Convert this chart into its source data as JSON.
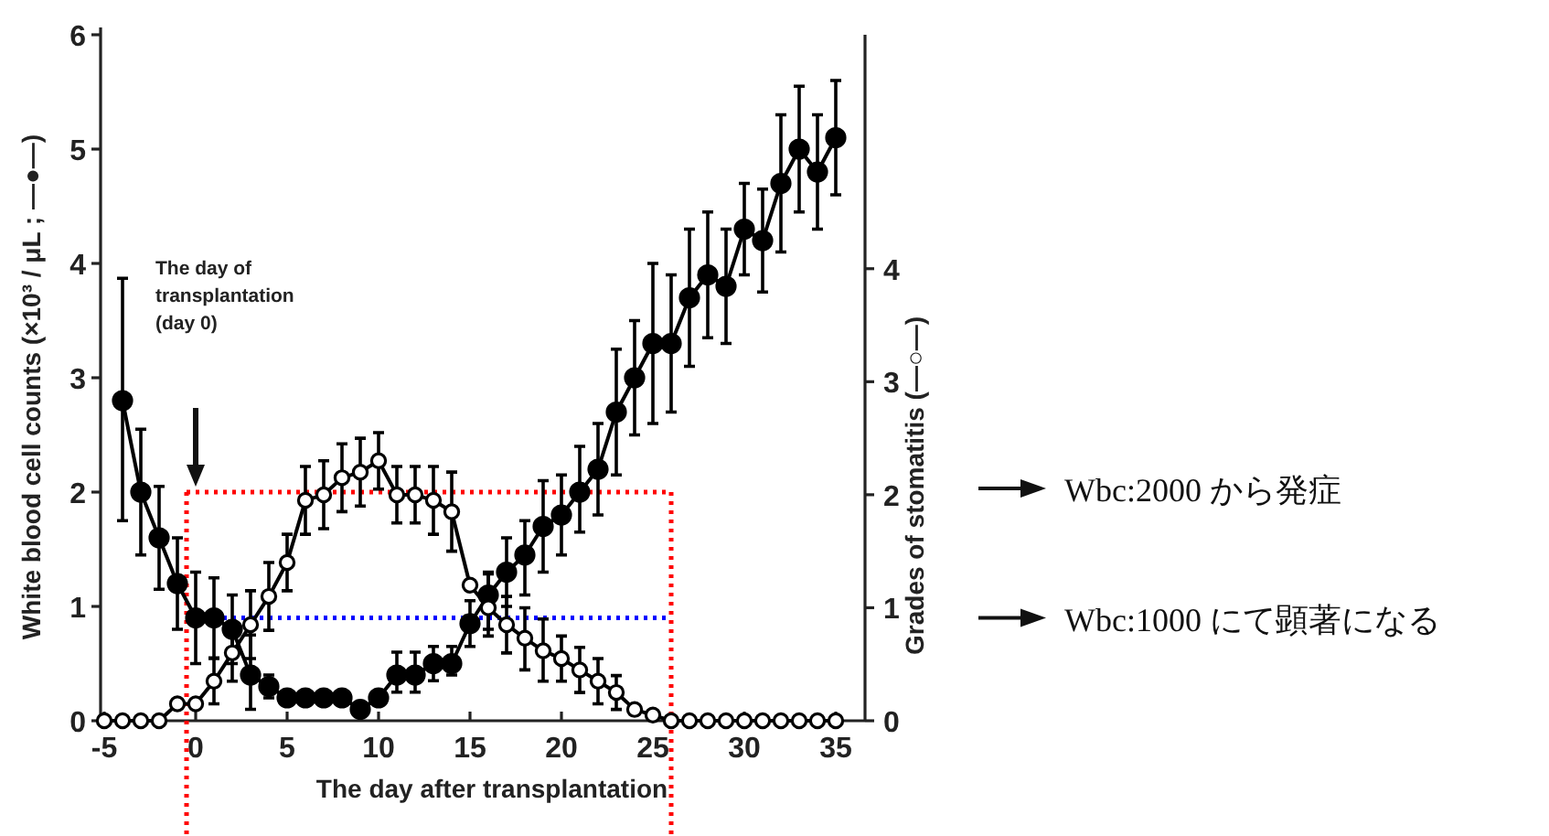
{
  "chart_data": {
    "type": "line",
    "xlabel": "The day after transplantation",
    "ylabel": "White blood cell counts (×10³ / μL ; —●—)",
    "y2label": "Grades of stomatitis (—○—)",
    "xlim": [
      -5.2,
      36.6
    ],
    "xticks": [
      -5,
      0,
      5,
      10,
      15,
      20,
      25,
      30,
      35
    ],
    "ylim": [
      0,
      6
    ],
    "yticks": [
      0,
      1,
      2,
      3,
      4,
      5,
      6
    ],
    "y2lim": [
      0,
      6.07
    ],
    "y2ticks": [
      0,
      1,
      2,
      3,
      4
    ],
    "grid": false,
    "marker": "circle",
    "line_style": "solid",
    "series": [
      {
        "color": "#000000",
        "x": [
          -4,
          -3,
          -2,
          -1,
          0,
          1,
          2,
          3,
          4,
          5,
          6,
          7,
          8,
          9,
          10,
          11,
          12,
          13,
          14,
          15,
          16,
          17,
          18,
          19,
          20,
          21,
          22,
          23,
          24,
          25,
          26,
          27,
          28,
          29,
          30,
          31,
          32,
          33,
          34,
          35
        ],
        "values": [
          2.8,
          2.0,
          1.6,
          1.2,
          0.9,
          0.9,
          0.8,
          0.4,
          0.3,
          0.2,
          0.2,
          0.2,
          0.2,
          0.1,
          0.2,
          0.4,
          0.4,
          0.5,
          0.5,
          0.85,
          1.1,
          1.3,
          1.45,
          1.7,
          1.8,
          2.0,
          2.2,
          2.7,
          3.0,
          3.3,
          3.3,
          3.7,
          3.9,
          3.8,
          4.3,
          4.2,
          4.7,
          5.0,
          4.8,
          5.1
        ],
        "errors": [
          [
            1.75,
            3.87
          ],
          [
            1.45,
            2.55
          ],
          [
            1.15,
            2.05
          ],
          [
            0.8,
            1.6
          ],
          [
            0.5,
            1.3
          ],
          [
            0.55,
            1.25
          ],
          [
            0.5,
            1.1
          ],
          [
            0.1,
            0.75
          ],
          [
            0.2,
            0.4
          ],
          null,
          null,
          null,
          null,
          null,
          null,
          [
            0.25,
            0.6
          ],
          [
            0.25,
            0.6
          ],
          [
            0.35,
            0.65
          ],
          [
            0.4,
            0.65
          ],
          [
            0.65,
            1.05
          ],
          [
            0.8,
            1.3
          ],
          [
            1.0,
            1.6
          ],
          [
            1.1,
            1.75
          ],
          [
            1.3,
            2.1
          ],
          [
            1.45,
            2.15
          ],
          [
            1.65,
            2.4
          ],
          [
            1.8,
            2.6
          ],
          [
            2.15,
            3.25
          ],
          [
            2.5,
            3.5
          ],
          [
            2.6,
            4.0
          ],
          [
            2.7,
            3.9
          ],
          [
            3.1,
            4.3
          ],
          [
            3.35,
            4.45
          ],
          [
            3.3,
            4.3
          ],
          [
            3.9,
            4.7
          ],
          [
            3.75,
            4.65
          ],
          [
            4.1,
            5.3
          ],
          [
            4.45,
            5.55
          ],
          [
            4.3,
            5.3
          ],
          [
            4.6,
            5.6
          ]
        ]
      },
      {
        "color": "#000000",
        "axis": "y2",
        "x": [
          -5,
          -4,
          -3,
          -2,
          -1,
          0,
          1,
          2,
          3,
          4,
          5,
          6,
          7,
          8,
          9,
          10,
          11,
          12,
          13,
          14,
          15,
          16,
          17,
          18,
          19,
          20,
          21,
          22,
          23,
          24,
          25,
          26,
          27,
          28,
          29,
          30,
          31,
          32,
          33,
          34,
          35
        ],
        "values": [
          0,
          0,
          0,
          0,
          0.15,
          0.15,
          0.35,
          0.6,
          0.85,
          1.1,
          1.4,
          1.95,
          2.0,
          2.15,
          2.2,
          2.3,
          2.0,
          2.0,
          1.95,
          1.85,
          1.2,
          1.0,
          0.85,
          0.73,
          0.62,
          0.55,
          0.45,
          0.35,
          0.25,
          0.1,
          0.05,
          0,
          0,
          0,
          0,
          0,
          0,
          0,
          0,
          0,
          0
        ],
        "errors": [
          null,
          null,
          null,
          null,
          null,
          null,
          [
            0.15,
            0.55
          ],
          [
            0.35,
            0.85
          ],
          [
            0.55,
            1.15
          ],
          [
            0.8,
            1.4
          ],
          [
            1.15,
            1.65
          ],
          [
            1.65,
            2.25
          ],
          [
            1.7,
            2.3
          ],
          [
            1.85,
            2.45
          ],
          [
            1.9,
            2.5
          ],
          [
            2.05,
            2.55
          ],
          [
            1.75,
            2.25
          ],
          [
            1.75,
            2.25
          ],
          [
            1.65,
            2.25
          ],
          [
            1.5,
            2.2
          ],
          null,
          [
            0.75,
            1.3
          ],
          [
            0.6,
            1.1
          ],
          [
            0.45,
            1.0
          ],
          [
            0.35,
            0.9
          ],
          [
            0.35,
            0.75
          ],
          [
            0.25,
            0.65
          ],
          [
            0.15,
            0.55
          ],
          [
            0.1,
            0.4
          ],
          null,
          null,
          null,
          null,
          null,
          null,
          null,
          null,
          null,
          null,
          null,
          null
        ]
      }
    ],
    "ref_lines": [
      {
        "axis": "y",
        "value": 2,
        "color": "#ff0000",
        "line_style": "dotted"
      },
      {
        "axis": "y",
        "value": 0.9,
        "color": "#0000ff",
        "line_style": "dotted"
      },
      {
        "axis": "x",
        "value": -0.5,
        "color": "#ff0000",
        "line_style": "dotted"
      },
      {
        "axis": "x",
        "value": 26,
        "color": "#ff0000",
        "line_style": "dotted"
      }
    ],
    "annotations": [
      "The day of transplantation (day 0)",
      "Wbc:2000 から発症",
      "Wbc:1000 にて顕著になる"
    ]
  }
}
